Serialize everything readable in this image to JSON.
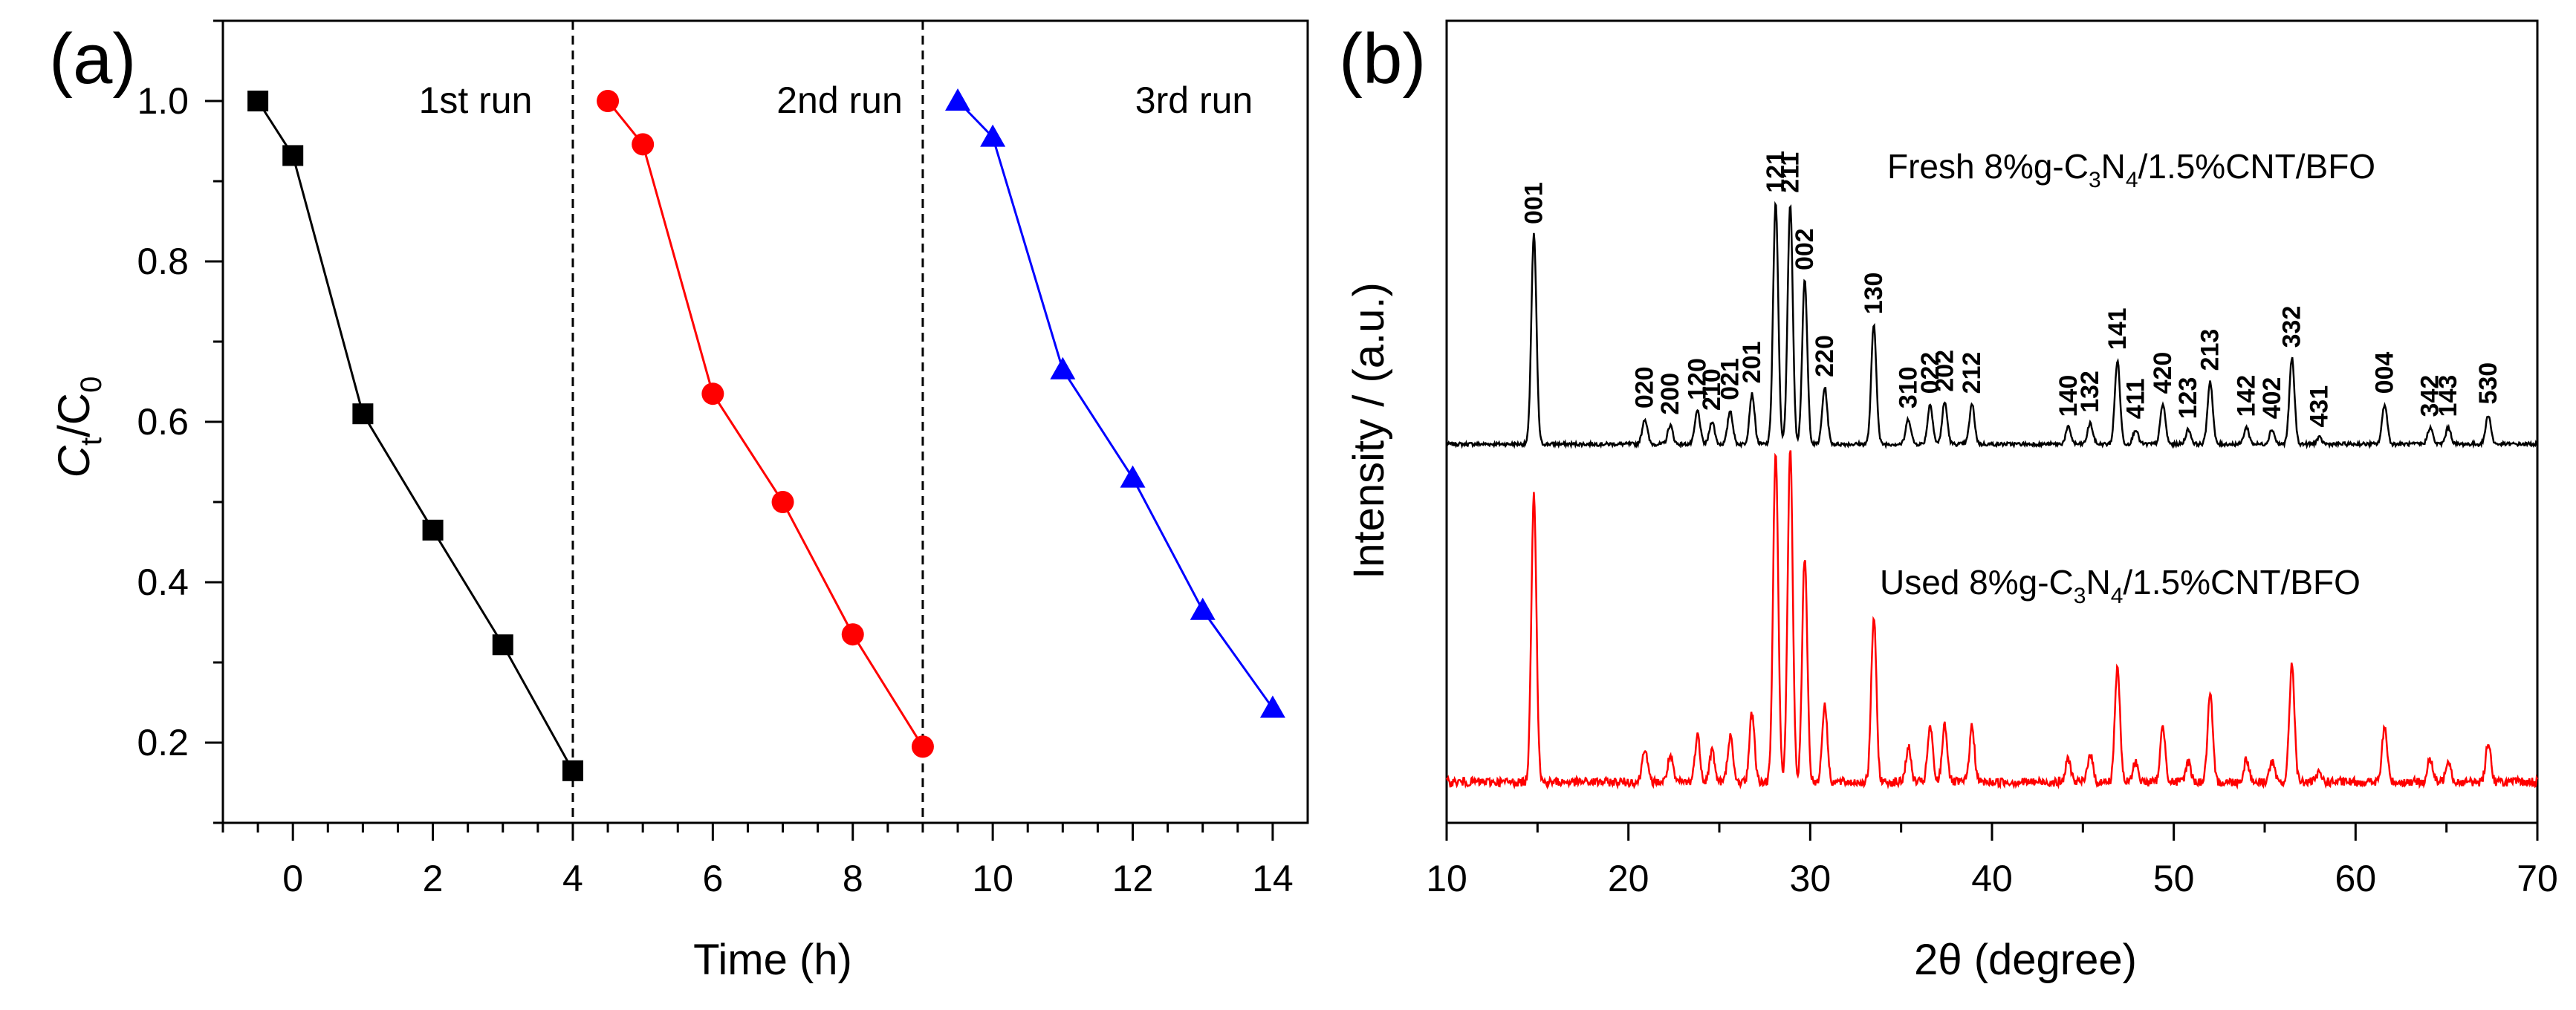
{
  "chart_data": [
    {
      "panel_label": "(a)",
      "type": "line",
      "xlabel": "Time (h)",
      "ylabel": {
        "main": "C",
        "sub1": "t",
        "slash": "/C",
        "sub2": "0"
      },
      "xlim": [
        -1,
        14.5
      ],
      "ylim": [
        0.1,
        1.1
      ],
      "xticks": [
        0,
        2,
        4,
        6,
        8,
        10,
        12,
        14
      ],
      "yticks": [
        0.2,
        0.4,
        0.6,
        0.8,
        1.0
      ],
      "xtick_labels": [
        "0",
        "2",
        "4",
        "6",
        "8",
        "10",
        "12",
        "14"
      ],
      "ytick_labels": [
        "0.2",
        "0.4",
        "0.6",
        "0.8",
        "1.0"
      ],
      "dividers": [
        4,
        9
      ],
      "series": [
        {
          "name": "1st run",
          "color": "#000000",
          "marker": "square",
          "x": [
            -0.5,
            0,
            1,
            2,
            3,
            4
          ],
          "y": [
            1.0,
            0.932,
            0.61,
            0.465,
            0.322,
            0.165
          ]
        },
        {
          "name": "2nd run",
          "color": "#ff0000",
          "marker": "circle",
          "x": [
            4.5,
            5,
            6,
            7,
            8,
            9
          ],
          "y": [
            1.0,
            0.946,
            0.635,
            0.5,
            0.335,
            0.195
          ]
        },
        {
          "name": "3rd run",
          "color": "#0000ff",
          "marker": "triangle",
          "x": [
            9.5,
            10,
            11,
            12,
            13,
            14
          ],
          "y": [
            1.0,
            0.955,
            0.665,
            0.53,
            0.365,
            0.243
          ]
        }
      ]
    },
    {
      "panel_label": "(b)",
      "type": "line",
      "xlabel": "2θ (degree)",
      "ylabel": "Intensity / (a.u.)",
      "xlim": [
        10,
        70
      ],
      "xticks": [
        10,
        20,
        30,
        40,
        50,
        60,
        70
      ],
      "xtick_labels": [
        "10",
        "20",
        "30",
        "40",
        "50",
        "60",
        "70"
      ],
      "peaks": [
        {
          "two_theta": 14.8,
          "intensity": 100,
          "hkl": "001"
        },
        {
          "two_theta": 20.9,
          "intensity": 12,
          "hkl": "020"
        },
        {
          "two_theta": 22.3,
          "intensity": 9,
          "hkl": "200"
        },
        {
          "two_theta": 23.8,
          "intensity": 16,
          "hkl": "120"
        },
        {
          "two_theta": 24.6,
          "intensity": 11,
          "hkl": "210"
        },
        {
          "two_theta": 25.6,
          "intensity": 16,
          "hkl": "021"
        },
        {
          "two_theta": 26.8,
          "intensity": 24,
          "hkl": "201"
        },
        {
          "two_theta": 28.1,
          "intensity": 115,
          "hkl": "121"
        },
        {
          "two_theta": 28.9,
          "intensity": 115,
          "hkl": "211"
        },
        {
          "two_theta": 29.7,
          "intensity": 78,
          "hkl": "002"
        },
        {
          "two_theta": 30.8,
          "intensity": 27,
          "hkl": "220"
        },
        {
          "two_theta": 33.5,
          "intensity": 57,
          "hkl": "130"
        },
        {
          "two_theta": 35.4,
          "intensity": 12,
          "hkl": "310"
        },
        {
          "two_theta": 36.6,
          "intensity": 19,
          "hkl": "022"
        },
        {
          "two_theta": 37.4,
          "intensity": 20,
          "hkl": "202"
        },
        {
          "two_theta": 38.9,
          "intensity": 19,
          "hkl": "212"
        },
        {
          "two_theta": 44.2,
          "intensity": 8,
          "hkl": "140"
        },
        {
          "two_theta": 45.4,
          "intensity": 10,
          "hkl": "132"
        },
        {
          "two_theta": 46.9,
          "intensity": 40,
          "hkl": "141"
        },
        {
          "two_theta": 47.9,
          "intensity": 7,
          "hkl": "411"
        },
        {
          "two_theta": 49.4,
          "intensity": 19,
          "hkl": "420"
        },
        {
          "two_theta": 50.8,
          "intensity": 7,
          "hkl": "123"
        },
        {
          "two_theta": 52.0,
          "intensity": 30,
          "hkl": "213"
        },
        {
          "two_theta": 54.0,
          "intensity": 8,
          "hkl": "142"
        },
        {
          "two_theta": 55.4,
          "intensity": 7,
          "hkl": "402"
        },
        {
          "two_theta": 56.5,
          "intensity": 41,
          "hkl": "332"
        },
        {
          "two_theta": 58.0,
          "intensity": 3,
          "hkl": "431"
        },
        {
          "two_theta": 61.6,
          "intensity": 19,
          "hkl": "004"
        },
        {
          "two_theta": 64.1,
          "intensity": 8,
          "hkl": "342"
        },
        {
          "two_theta": 65.1,
          "intensity": 8,
          "hkl": "143"
        },
        {
          "two_theta": 67.3,
          "intensity": 14,
          "hkl": "530"
        }
      ],
      "series": [
        {
          "name": "Fresh 8%g-C3N4/1.5%CNT/BFO",
          "color": "#000000",
          "label_parts": {
            "pre": "Fresh 8%g-C",
            "sub1": "3",
            "mid": "N",
            "sub2": "4",
            "post": "/1.5%CNT/BFO"
          }
        },
        {
          "name": "Used 8%g-C3N4/1.5%CNT/BFO",
          "color": "#ff0000",
          "label_parts": {
            "pre": "Used 8%g-C",
            "sub1": "3",
            "mid": "N",
            "sub2": "4",
            "post": "/1.5%CNT/BFO"
          }
        }
      ]
    }
  ]
}
